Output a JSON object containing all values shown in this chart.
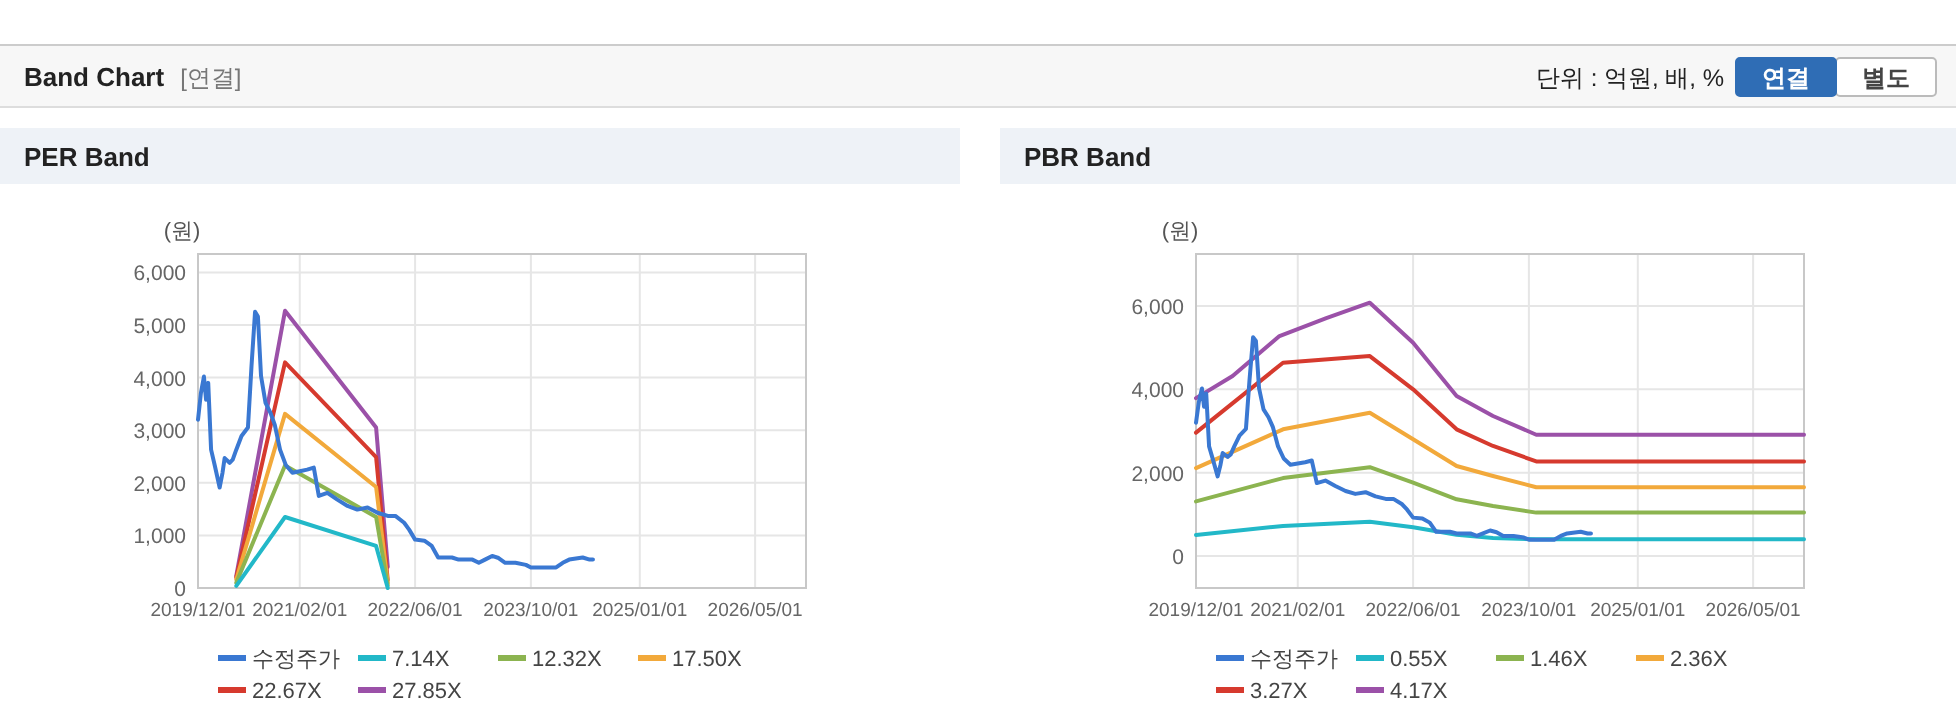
{
  "chart_data": [
    {
      "type": "other",
      "title": "Band Chart",
      "annotations": [
        "[연결]",
        "단위 : 억원, 배, %",
        "연결",
        "별도"
      ]
    },
    {
      "type": "line",
      "title": "PER Band",
      "ylabel": "(원)",
      "xlim": [
        "2019-12-01",
        "2026-12-01"
      ],
      "ylim": [
        0,
        6350
      ],
      "xticks": [
        {
          "value": "2019-12-01",
          "label": "2019/12/01"
        },
        {
          "value": "2021-02-01",
          "label": "2021/02/01"
        },
        {
          "value": "2022-06-01",
          "label": "2022/06/01"
        },
        {
          "value": "2023-10-01",
          "label": "2023/10/01"
        },
        {
          "value": "2025-01-01",
          "label": "2025/01/01"
        },
        {
          "value": "2026-05-01",
          "label": "2026/05/01"
        }
      ],
      "yticks": [
        {
          "value": 0,
          "label": "0"
        },
        {
          "value": 1000,
          "label": "1,000"
        },
        {
          "value": 2000,
          "label": "2,000"
        },
        {
          "value": 3000,
          "label": "3,000"
        },
        {
          "value": 4000,
          "label": "4,000"
        },
        {
          "value": 5000,
          "label": "5,000"
        },
        {
          "value": 6000,
          "label": "6,000"
        }
      ],
      "grid": true,
      "legend": "bottom",
      "series": [
        {
          "name": "수정주가",
          "color": "#3a78d2",
          "x": [
            "2019-12-01",
            "2019-12-13",
            "2019-12-26",
            "2020-01-04",
            "2020-01-13",
            "2020-01-25",
            "2020-02-10",
            "2020-03-01",
            "2020-03-13",
            "2020-03-22",
            "2020-04-12",
            "2020-04-25",
            "2020-05-10",
            "2020-06-01",
            "2020-06-28",
            "2020-07-13",
            "2020-07-28",
            "2020-08-09",
            "2020-08-22",
            "2020-09-10",
            "2020-10-01",
            "2020-10-19",
            "2020-11-10",
            "2020-12-04",
            "2021-01-01",
            "2021-02-01",
            "2021-03-04",
            "2021-04-01",
            "2021-04-22",
            "2021-05-28",
            "2021-07-09",
            "2021-08-21",
            "2021-10-01",
            "2021-11-13",
            "2021-12-25",
            "2022-02-06",
            "2022-03-10",
            "2022-04-16",
            "2022-05-07",
            "2022-06-01",
            "2022-07-10",
            "2022-08-10",
            "2022-09-06",
            "2022-11-03",
            "2022-12-01",
            "2023-01-28",
            "2023-02-24",
            "2023-03-22",
            "2023-04-21",
            "2023-05-18",
            "2023-06-15",
            "2023-07-28",
            "2023-09-10",
            "2023-10-01",
            "2023-11-19",
            "2024-01-15",
            "2024-02-12",
            "2024-03-10",
            "2024-05-06",
            "2024-06-04",
            "2024-06-18"
          ],
          "values": [
            3200,
            3700,
            4020,
            3580,
            3900,
            2630,
            2320,
            1910,
            2190,
            2470,
            2380,
            2440,
            2630,
            2890,
            3050,
            4220,
            5250,
            5160,
            4030,
            3520,
            3330,
            3100,
            2630,
            2340,
            2190,
            2220,
            2250,
            2290,
            1750,
            1810,
            1680,
            1560,
            1490,
            1530,
            1430,
            1370,
            1370,
            1240,
            1110,
            920,
            900,
            800,
            580,
            580,
            540,
            540,
            480,
            540,
            610,
            570,
            480,
            480,
            440,
            390,
            390,
            390,
            480,
            540,
            580,
            540,
            540
          ]
        },
        {
          "name": "7.14X",
          "color": "#22b8c8",
          "x": [
            "2020-05-10",
            "2020-12-01",
            "2021-12-19",
            "2022-02-06"
          ],
          "values": [
            40,
            1350,
            800,
            0
          ]
        },
        {
          "name": "12.32X",
          "color": "#8cb450",
          "x": [
            "2020-05-10",
            "2020-12-01",
            "2021-12-19",
            "2022-02-06"
          ],
          "values": [
            100,
            2330,
            1350,
            50
          ]
        },
        {
          "name": "17.50X",
          "color": "#f2a93b",
          "x": [
            "2020-05-10",
            "2020-12-01",
            "2021-12-19",
            "2022-02-06"
          ],
          "values": [
            160,
            3310,
            1920,
            100
          ]
        },
        {
          "name": "22.67X",
          "color": "#d63a2e",
          "x": [
            "2020-05-10",
            "2020-12-01",
            "2021-12-19",
            "2022-02-06"
          ],
          "values": [
            200,
            4290,
            2490,
            150
          ]
        },
        {
          "name": "27.85X",
          "color": "#9b51a8",
          "x": [
            "2020-05-10",
            "2020-12-01",
            "2021-12-19",
            "2022-02-06"
          ],
          "values": [
            230,
            5270,
            3050,
            400
          ]
        }
      ]
    },
    {
      "type": "line",
      "title": "PBR Band",
      "ylabel": "(원)",
      "xlim": [
        "2019-12-01",
        "2026-12-01"
      ],
      "ylim": [
        -770,
        7250
      ],
      "xticks": [
        {
          "value": "2019-12-01",
          "label": "2019/12/01"
        },
        {
          "value": "2021-02-01",
          "label": "2021/02/01"
        },
        {
          "value": "2022-06-01",
          "label": "2022/06/01"
        },
        {
          "value": "2023-10-01",
          "label": "2023/10/01"
        },
        {
          "value": "2025-01-01",
          "label": "2025/01/01"
        },
        {
          "value": "2026-05-01",
          "label": "2026/05/01"
        }
      ],
      "yticks": [
        {
          "value": 0,
          "label": "0"
        },
        {
          "value": 2000,
          "label": "2,000"
        },
        {
          "value": 4000,
          "label": "4,000"
        },
        {
          "value": 6000,
          "label": "6,000"
        }
      ],
      "grid": true,
      "legend": "bottom",
      "series": [
        {
          "name": "수정주가",
          "color": "#3a78d2",
          "x": [
            "2019-12-01",
            "2019-12-13",
            "2019-12-26",
            "2020-01-04",
            "2020-01-13",
            "2020-01-25",
            "2020-02-10",
            "2020-03-01",
            "2020-03-13",
            "2020-03-22",
            "2020-04-12",
            "2020-04-25",
            "2020-05-10",
            "2020-06-01",
            "2020-06-28",
            "2020-07-13",
            "2020-07-28",
            "2020-08-09",
            "2020-08-22",
            "2020-09-10",
            "2020-10-01",
            "2020-10-19",
            "2020-11-10",
            "2020-12-04",
            "2021-01-01",
            "2021-02-01",
            "2021-03-04",
            "2021-04-01",
            "2021-04-22",
            "2021-05-28",
            "2021-07-09",
            "2021-08-21",
            "2021-10-01",
            "2021-11-13",
            "2021-12-25",
            "2022-02-06",
            "2022-03-10",
            "2022-04-16",
            "2022-05-07",
            "2022-06-01",
            "2022-07-10",
            "2022-08-10",
            "2022-09-06",
            "2022-11-03",
            "2022-12-01",
            "2023-01-28",
            "2023-02-24",
            "2023-03-22",
            "2023-04-21",
            "2023-05-18",
            "2023-06-15",
            "2023-07-28",
            "2023-09-10",
            "2023-10-01",
            "2023-11-19",
            "2024-01-15",
            "2024-02-12",
            "2024-03-10",
            "2024-05-06",
            "2024-06-04",
            "2024-06-18"
          ],
          "values": [
            3200,
            3700,
            4020,
            3580,
            3900,
            2630,
            2320,
            1910,
            2190,
            2470,
            2380,
            2440,
            2630,
            2890,
            3050,
            4220,
            5250,
            5160,
            4030,
            3520,
            3330,
            3100,
            2630,
            2340,
            2190,
            2220,
            2250,
            2290,
            1750,
            1810,
            1680,
            1560,
            1490,
            1530,
            1430,
            1370,
            1370,
            1240,
            1110,
            920,
            900,
            800,
            580,
            580,
            540,
            540,
            480,
            540,
            610,
            570,
            480,
            480,
            440,
            390,
            390,
            390,
            480,
            540,
            580,
            540,
            540
          ]
        },
        {
          "name": "0.55X",
          "color": "#22b8c8",
          "x": [
            "2019-12-01",
            "2020-12-01",
            "2021-12-01",
            "2022-06-01",
            "2022-12-01",
            "2023-05-03",
            "2023-11-01",
            "2026-12-01"
          ],
          "values": [
            500,
            720,
            820,
            690,
            510,
            430,
            400,
            400
          ]
        },
        {
          "name": "1.46X",
          "color": "#8cb450",
          "x": [
            "2019-12-01",
            "2020-12-01",
            "2021-12-01",
            "2022-06-01",
            "2022-12-01",
            "2023-05-03",
            "2023-11-01",
            "2026-12-01"
          ],
          "values": [
            1310,
            1870,
            2130,
            1760,
            1360,
            1200,
            1040,
            1040
          ]
        },
        {
          "name": "2.36X",
          "color": "#f2a93b",
          "x": [
            "2019-12-01",
            "2020-12-01",
            "2021-12-01",
            "2022-06-01",
            "2022-12-01",
            "2023-05-03",
            "2023-11-01",
            "2026-12-01"
          ],
          "values": [
            2110,
            3040,
            3440,
            2800,
            2160,
            1920,
            1650,
            1650
          ]
        },
        {
          "name": "3.27X",
          "color": "#d63a2e",
          "x": [
            "2019-12-01",
            "2020-12-01",
            "2021-12-01",
            "2022-06-01",
            "2022-12-01",
            "2023-05-03",
            "2023-11-01",
            "2026-12-01"
          ],
          "values": [
            2960,
            4640,
            4800,
            4000,
            3040,
            2640,
            2270,
            2270
          ]
        },
        {
          "name": "4.17X",
          "color": "#9b51a8",
          "x": [
            "2019-12-01",
            "2020-05-03",
            "2020-11-16",
            "2021-06-01",
            "2021-12-01",
            "2022-06-01",
            "2022-12-01",
            "2023-05-03",
            "2023-11-01",
            "2026-12-01"
          ],
          "values": [
            3790,
            4320,
            5280,
            5710,
            6080,
            5120,
            3840,
            3360,
            2910,
            2910
          ]
        }
      ]
    }
  ]
}
